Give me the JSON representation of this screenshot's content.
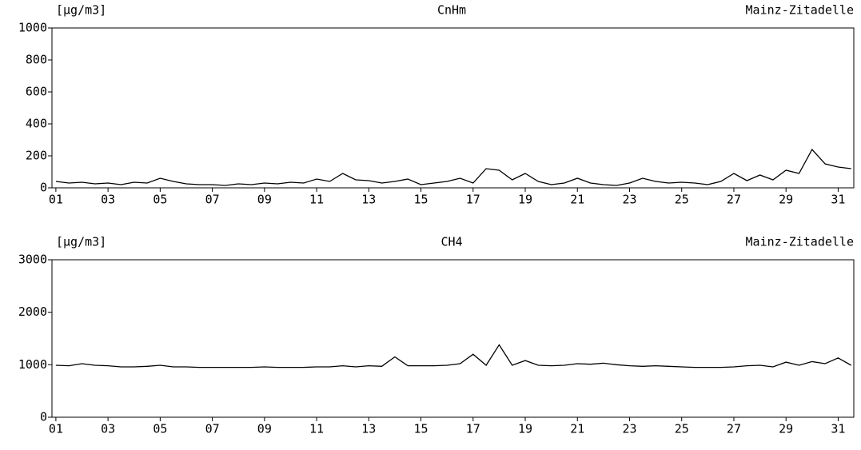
{
  "chart_data": [
    {
      "type": "line",
      "title": "CnHm",
      "ylabel": "[µg/m3]",
      "subtitle": "Mainz-Zitadelle",
      "xlim": [
        0.85,
        31.6
      ],
      "ylim": [
        0,
        1000
      ],
      "yticks": [
        0,
        200,
        400,
        600,
        800,
        1000
      ],
      "xticks": [
        {
          "value": 1,
          "label": "01"
        },
        {
          "value": 3,
          "label": "03"
        },
        {
          "value": 5,
          "label": "05"
        },
        {
          "value": 7,
          "label": "07"
        },
        {
          "value": 9,
          "label": "09"
        },
        {
          "value": 11,
          "label": "11"
        },
        {
          "value": 13,
          "label": "13"
        },
        {
          "value": 15,
          "label": "15"
        },
        {
          "value": 17,
          "label": "17"
        },
        {
          "value": 19,
          "label": "19"
        },
        {
          "value": 21,
          "label": "21"
        },
        {
          "value": 23,
          "label": "23"
        },
        {
          "value": 25,
          "label": "25"
        },
        {
          "value": 27,
          "label": "27"
        },
        {
          "value": 29,
          "label": "29"
        },
        {
          "value": 31,
          "label": "31"
        }
      ],
      "x": [
        1,
        1.5,
        2,
        2.5,
        3,
        3.5,
        4,
        4.5,
        5,
        5.5,
        6,
        6.5,
        7,
        7.5,
        8,
        8.5,
        9,
        9.5,
        10,
        10.5,
        11,
        11.5,
        12,
        12.5,
        13,
        13.5,
        14,
        14.5,
        15,
        15.5,
        16,
        16.5,
        17,
        17.5,
        18,
        18.5,
        19,
        19.5,
        20,
        20.5,
        21,
        21.5,
        22,
        22.5,
        23,
        23.5,
        24,
        24.5,
        25,
        25.5,
        26,
        26.5,
        27,
        27.5,
        28,
        28.5,
        29,
        29.5,
        30,
        30.5,
        31,
        31.5
      ],
      "series": [
        {
          "color": "#000000",
          "values": [
            40,
            30,
            35,
            25,
            30,
            20,
            35,
            30,
            60,
            40,
            25,
            20,
            20,
            15,
            25,
            20,
            30,
            25,
            35,
            30,
            55,
            40,
            90,
            50,
            45,
            30,
            40,
            55,
            20,
            30,
            40,
            60,
            30,
            120,
            110,
            50,
            90,
            40,
            20,
            30,
            60,
            30,
            20,
            15,
            30,
            60,
            40,
            30,
            35,
            30,
            20,
            40,
            90,
            45,
            80,
            50,
            110,
            90,
            240,
            150,
            130,
            120
          ]
        }
      ]
    },
    {
      "type": "line",
      "title": "CH4",
      "ylabel": "[µg/m3]",
      "subtitle": "Mainz-Zitadelle",
      "xlim": [
        0.85,
        31.6
      ],
      "ylim": [
        0,
        3000
      ],
      "yticks": [
        0,
        1000,
        2000,
        3000
      ],
      "xticks": [
        {
          "value": 1,
          "label": "01"
        },
        {
          "value": 3,
          "label": "03"
        },
        {
          "value": 5,
          "label": "05"
        },
        {
          "value": 7,
          "label": "07"
        },
        {
          "value": 9,
          "label": "09"
        },
        {
          "value": 11,
          "label": "11"
        },
        {
          "value": 13,
          "label": "13"
        },
        {
          "value": 15,
          "label": "15"
        },
        {
          "value": 17,
          "label": "17"
        },
        {
          "value": 19,
          "label": "19"
        },
        {
          "value": 21,
          "label": "21"
        },
        {
          "value": 23,
          "label": "23"
        },
        {
          "value": 25,
          "label": "25"
        },
        {
          "value": 27,
          "label": "27"
        },
        {
          "value": 29,
          "label": "29"
        },
        {
          "value": 31,
          "label": "31"
        }
      ],
      "x": [
        1,
        1.5,
        2,
        2.5,
        3,
        3.5,
        4,
        4.5,
        5,
        5.5,
        6,
        6.5,
        7,
        7.5,
        8,
        8.5,
        9,
        9.5,
        10,
        10.5,
        11,
        11.5,
        12,
        12.5,
        13,
        13.5,
        14,
        14.5,
        15,
        15.5,
        16,
        16.5,
        17,
        17.5,
        18,
        18.5,
        19,
        19.5,
        20,
        20.5,
        21,
        21.5,
        22,
        22.5,
        23,
        23.5,
        24,
        24.5,
        25,
        25.5,
        26,
        26.5,
        27,
        27.5,
        28,
        28.5,
        29,
        29.5,
        30,
        30.5,
        31,
        31.5
      ],
      "series": [
        {
          "color": "#000000",
          "values": [
            990,
            980,
            1020,
            990,
            980,
            960,
            960,
            970,
            990,
            960,
            960,
            950,
            950,
            950,
            950,
            950,
            960,
            950,
            950,
            950,
            960,
            960,
            980,
            960,
            980,
            970,
            1150,
            980,
            980,
            980,
            990,
            1020,
            1200,
            990,
            1380,
            990,
            1080,
            990,
            980,
            990,
            1020,
            1010,
            1030,
            1000,
            980,
            970,
            980,
            970,
            960,
            950,
            950,
            950,
            960,
            980,
            990,
            960,
            1050,
            990,
            1060,
            1020,
            1130,
            990
          ]
        }
      ]
    }
  ]
}
